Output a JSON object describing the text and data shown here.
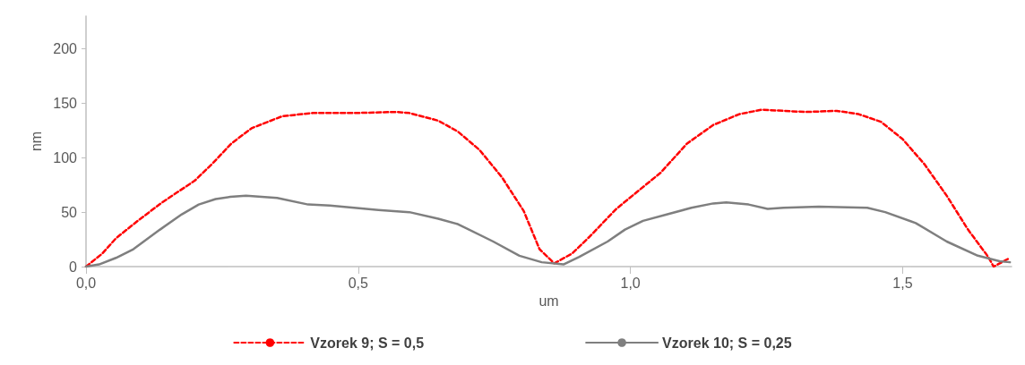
{
  "chart_data": {
    "type": "line",
    "xlabel": "um",
    "ylabel": "nm",
    "xlim": [
      0,
      1.7
    ],
    "xticks": [
      {
        "value": 0,
        "label": "0,0"
      },
      {
        "value": 0.5,
        "label": "0,5"
      },
      {
        "value": 1,
        "label": "1,0"
      },
      {
        "value": 1.5,
        "label": "1,5"
      }
    ],
    "ylim": [
      0,
      230
    ],
    "yticks": [
      0,
      50,
      100,
      150,
      200
    ],
    "grid": false,
    "legend": "bottom",
    "marker": "none",
    "series": [
      {
        "name": "Vzorek 9; S = 0,5",
        "color": "#ff0000",
        "line_style": "dashed",
        "x": [
          0,
          0.03,
          0.055,
          0.095,
          0.14,
          0.2,
          0.233,
          0.267,
          0.304,
          0.36,
          0.416,
          0.49,
          0.57,
          0.594,
          0.647,
          0.683,
          0.723,
          0.764,
          0.804,
          0.833,
          0.86,
          0.893,
          0.926,
          0.974,
          1.018,
          1.055,
          1.104,
          1.152,
          1.2,
          1.241,
          1.281,
          1.322,
          1.379,
          1.419,
          1.46,
          1.5,
          1.54,
          1.581,
          1.62,
          1.657,
          1.667,
          1.697
        ],
        "values": [
          0,
          12,
          26,
          42,
          59,
          79,
          95,
          113,
          127,
          138,
          141,
          141,
          142,
          141,
          134,
          124,
          107,
          82,
          51,
          16,
          3,
          12,
          28,
          53,
          71,
          86,
          113,
          130,
          140,
          144,
          143,
          142,
          143,
          140,
          133,
          117,
          94,
          65,
          34,
          9,
          0,
          8
        ]
      },
      {
        "name": "Vzorek 10; S = 0,25",
        "color": "#7f7f7f",
        "line_style": "solid",
        "x": [
          0,
          0.024,
          0.055,
          0.087,
          0.136,
          0.176,
          0.207,
          0.238,
          0.265,
          0.294,
          0.351,
          0.408,
          0.448,
          0.537,
          0.594,
          0.647,
          0.683,
          0.748,
          0.796,
          0.837,
          0.877,
          0.906,
          0.958,
          0.99,
          1.023,
          1.068,
          1.112,
          1.152,
          1.176,
          1.217,
          1.252,
          1.281,
          1.346,
          1.435,
          1.468,
          1.524,
          1.581,
          1.638,
          1.678,
          1.697
        ],
        "values": [
          0,
          2,
          8,
          16,
          34,
          48,
          57,
          62,
          64,
          65,
          63,
          57,
          56,
          52,
          50,
          44,
          39,
          23,
          10,
          4,
          2,
          9,
          23,
          34,
          42,
          48,
          54,
          58,
          59,
          57,
          53,
          54,
          55,
          54,
          50,
          40,
          23,
          10,
          5,
          4
        ]
      }
    ]
  }
}
